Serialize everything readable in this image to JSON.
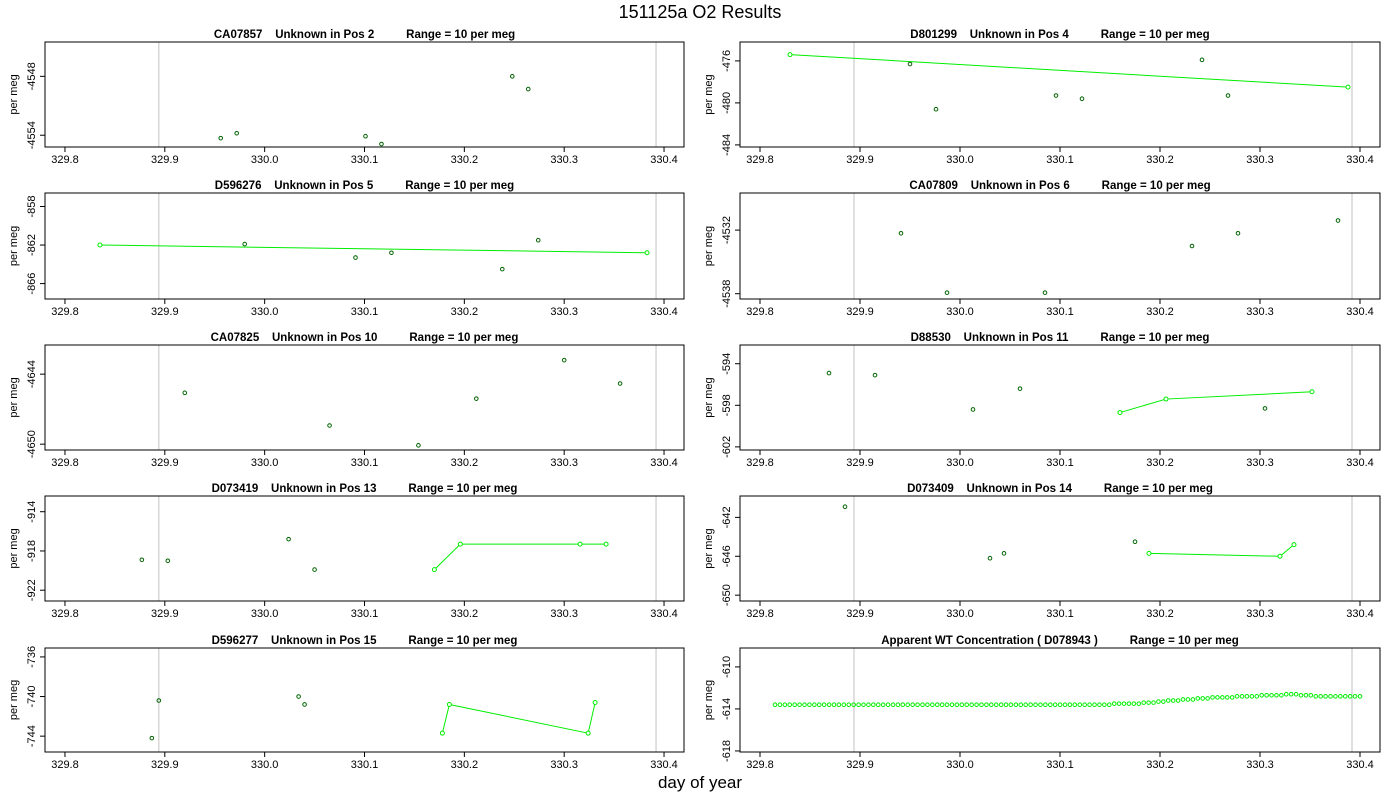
{
  "title": "151125a  O2 Results",
  "xlabel": "day of year",
  "colors": {
    "fit": "#00ee00",
    "point_dark": "#006400",
    "point_light": "#00ee00",
    "vline": "#cccccc"
  },
  "chart_data": [
    {
      "type": "scatter",
      "title": "CA07857    Unknown in Pos 2          Range = 10 per meg",
      "ylabel": "per meg",
      "xticks": [
        329.8,
        329.9,
        330.0,
        330.1,
        330.2,
        330.3,
        330.4
      ],
      "yticks": [
        -4548,
        -4554
      ],
      "xlim": [
        329.78,
        330.42
      ],
      "ylim": [
        -4555.2,
        -4544.5
      ],
      "vlines": [
        329.894,
        330.392
      ],
      "points": [
        [
          329.956,
          -4554.3
        ],
        [
          329.972,
          -4553.8
        ],
        [
          330.101,
          -4554.1
        ],
        [
          330.117,
          -4554.9
        ],
        [
          330.248,
          -4548.0
        ],
        [
          330.264,
          -4549.3
        ]
      ],
      "fit": [],
      "point_color": "dark"
    },
    {
      "type": "scatter",
      "title": "D801299    Unknown in Pos 4          Range = 10 per meg",
      "ylabel": "per meg",
      "xticks": [
        329.8,
        329.9,
        330.0,
        330.1,
        330.2,
        330.3,
        330.4
      ],
      "yticks": [
        -476,
        -480,
        -484
      ],
      "xlim": [
        329.78,
        330.42
      ],
      "ylim": [
        -484.2,
        -474.2
      ],
      "vlines": [
        329.894,
        330.392
      ],
      "points": [
        [
          329.95,
          -476.3
        ],
        [
          329.976,
          -480.6
        ],
        [
          330.096,
          -479.3
        ],
        [
          330.122,
          -479.6
        ],
        [
          330.242,
          -475.9
        ],
        [
          330.268,
          -479.3
        ]
      ],
      "fit": [
        [
          329.83,
          -475.4
        ],
        [
          330.388,
          -478.5
        ]
      ],
      "point_color": "dark"
    },
    {
      "type": "scatter",
      "title": "D596276    Unknown in Pos 5          Range = 10 per meg",
      "ylabel": "per meg",
      "xticks": [
        329.8,
        329.9,
        330.0,
        330.1,
        330.2,
        330.3,
        330.4
      ],
      "yticks": [
        -858,
        -862,
        -866
      ],
      "xlim": [
        329.78,
        330.42
      ],
      "ylim": [
        -867.6,
        -856.6
      ],
      "vlines": [
        329.894,
        330.392
      ],
      "points": [
        [
          329.98,
          -861.9
        ],
        [
          330.091,
          -863.3
        ],
        [
          330.127,
          -862.8
        ],
        [
          330.238,
          -864.5
        ],
        [
          330.274,
          -861.5
        ]
      ],
      "fit": [
        [
          329.835,
          -862.0
        ],
        [
          330.383,
          -862.8
        ]
      ],
      "point_color": "dark"
    },
    {
      "type": "scatter",
      "title": "CA07809    Unknown in Pos 6          Range = 10 per meg",
      "ylabel": "per meg",
      "xticks": [
        329.8,
        329.9,
        330.0,
        330.1,
        330.2,
        330.3,
        330.4
      ],
      "yticks": [
        -4532,
        -4538
      ],
      "xlim": [
        329.78,
        330.42
      ],
      "ylim": [
        -4538.5,
        -4528.5
      ],
      "vlines": [
        329.894,
        330.392
      ],
      "points": [
        [
          329.941,
          -4532.3
        ],
        [
          329.987,
          -4537.9
        ],
        [
          330.085,
          -4537.9
        ],
        [
          330.232,
          -4533.5
        ],
        [
          330.278,
          -4532.3
        ],
        [
          330.378,
          -4531.1
        ]
      ],
      "fit": [],
      "point_color": "dark"
    },
    {
      "type": "scatter",
      "title": "CA07825    Unknown in Pos 10          Range = 10 per meg",
      "ylabel": "per meg",
      "xticks": [
        329.8,
        329.9,
        330.0,
        330.1,
        330.2,
        330.3,
        330.4
      ],
      "yticks": [
        -4644,
        -4650
      ],
      "xlim": [
        329.78,
        330.42
      ],
      "ylim": [
        -4650.5,
        -4641.5
      ],
      "vlines": [
        329.894,
        330.392
      ],
      "points": [
        [
          329.92,
          -4645.6
        ],
        [
          330.065,
          -4648.4
        ],
        [
          330.154,
          -4650.1
        ],
        [
          330.212,
          -4646.1
        ],
        [
          330.3,
          -4642.8
        ],
        [
          330.356,
          -4644.8
        ]
      ],
      "fit": [],
      "point_color": "dark"
    },
    {
      "type": "scatter",
      "title": "D88530    Unknown in Pos 11          Range = 10 per meg",
      "ylabel": "per meg",
      "xticks": [
        329.8,
        329.9,
        330.0,
        330.1,
        330.2,
        330.3,
        330.4
      ],
      "yticks": [
        -594,
        -598,
        -602
      ],
      "xlim": [
        329.78,
        330.42
      ],
      "ylim": [
        -602.3,
        -592.2
      ],
      "vlines": [
        329.894,
        330.392
      ],
      "points": [
        [
          329.869,
          -594.9
        ],
        [
          329.915,
          -595.1
        ],
        [
          330.013,
          -598.4
        ],
        [
          330.06,
          -596.4
        ],
        [
          330.305,
          -598.3
        ]
      ],
      "fit": [
        [
          330.16,
          -598.7
        ],
        [
          330.206,
          -597.4
        ],
        [
          330.352,
          -596.7
        ]
      ],
      "point_color": "dark"
    },
    {
      "type": "scatter",
      "title": "D073419    Unknown in Pos 13          Range = 10 per meg",
      "ylabel": "per meg",
      "xticks": [
        329.8,
        329.9,
        330.0,
        330.1,
        330.2,
        330.3,
        330.4
      ],
      "yticks": [
        -914,
        -918,
        -922
      ],
      "xlim": [
        329.78,
        330.42
      ],
      "ylim": [
        -923.1,
        -912.4
      ],
      "vlines": [
        329.894,
        330.392
      ],
      "points": [
        [
          329.877,
          -918.9
        ],
        [
          329.903,
          -919.0
        ],
        [
          330.024,
          -916.8
        ],
        [
          330.05,
          -919.9
        ]
      ],
      "fit": [
        [
          330.17,
          -919.9
        ],
        [
          330.196,
          -917.3
        ],
        [
          330.316,
          -917.3
        ],
        [
          330.342,
          -917.3
        ]
      ],
      "point_color": "dark"
    },
    {
      "type": "scatter",
      "title": "D073409    Unknown in Pos 14          Range = 10 per meg",
      "ylabel": "per meg",
      "xticks": [
        329.8,
        329.9,
        330.0,
        330.1,
        330.2,
        330.3,
        330.4
      ],
      "yticks": [
        -642,
        -646,
        -650
      ],
      "xlim": [
        329.78,
        330.42
      ],
      "ylim": [
        -650.6,
        -639.8
      ],
      "vlines": [
        329.894,
        330.392
      ],
      "points": [
        [
          329.885,
          -640.9
        ],
        [
          330.03,
          -646.2
        ],
        [
          330.044,
          -645.7
        ],
        [
          330.175,
          -644.5
        ]
      ],
      "fit": [
        [
          330.189,
          -645.7
        ],
        [
          330.32,
          -646.0
        ],
        [
          330.334,
          -644.8
        ]
      ],
      "point_color": "dark"
    },
    {
      "type": "scatter",
      "title": "D596277    Unknown in Pos 15          Range = 10 per meg",
      "ylabel": "per meg",
      "xticks": [
        329.8,
        329.9,
        330.0,
        330.1,
        330.2,
        330.3,
        330.4
      ],
      "yticks": [
        -736,
        -740,
        -744
      ],
      "xlim": [
        329.78,
        330.42
      ],
      "ylim": [
        -745.6,
        -735.1
      ],
      "vlines": [
        329.894,
        330.392
      ],
      "points": [
        [
          329.887,
          -744.2
        ],
        [
          329.894,
          -740.4
        ],
        [
          330.034,
          -740.0
        ],
        [
          330.04,
          -740.8
        ]
      ],
      "fit": [
        [
          330.178,
          -743.7
        ],
        [
          330.185,
          -740.8
        ],
        [
          330.324,
          -743.7
        ],
        [
          330.331,
          -740.6
        ]
      ],
      "point_color": "dark"
    },
    {
      "type": "line",
      "title": "Apparent WT Concentration ( D078943 )          Range = 10 per meg",
      "ylabel": "per meg",
      "xticks": [
        329.8,
        329.9,
        330.0,
        330.1,
        330.2,
        330.3,
        330.4
      ],
      "yticks": [
        -610,
        -614,
        -618
      ],
      "xlim": [
        329.78,
        330.42
      ],
      "ylim": [
        -618.1,
        -608.2
      ],
      "vlines": [
        329.894,
        330.392
      ],
      "line_range": [
        329.815,
        330.4
      ],
      "line_values": [
        -613.6,
        -613.6,
        -613.6,
        -613.6,
        -613.6,
        -613.6,
        -613.6,
        -613.6,
        -613.6,
        -613.6,
        -613.6,
        -613.6,
        -613.6,
        -613.6,
        -613.6,
        -613.6,
        -613.6,
        -613.6,
        -613.6,
        -613.6,
        -613.6,
        -613.6,
        -613.6,
        -613.6,
        -613.6,
        -613.6,
        -613.6,
        -613.6,
        -613.6,
        -613.6,
        -613.6,
        -613.6,
        -613.6,
        -613.6,
        -613.6,
        -613.6,
        -613.6,
        -613.6,
        -613.6,
        -613.6,
        -613.6,
        -613.6,
        -613.6,
        -613.6,
        -613.6,
        -613.6,
        -613.6,
        -613.6,
        -613.6,
        -613.6,
        -613.6,
        -613.6,
        -613.6,
        -613.6,
        -613.6,
        -613.6,
        -613.6,
        -613.6,
        -613.6,
        -613.6,
        -613.6,
        -613.6,
        -613.6,
        -613.6,
        -613.6,
        -613.6,
        -613.6,
        -613.6,
        -613.6,
        -613.5,
        -613.5,
        -613.5,
        -613.5,
        -613.5,
        -613.5,
        -613.4,
        -613.4,
        -613.4,
        -613.3,
        -613.3,
        -613.2,
        -613.2,
        -613.2,
        -613.1,
        -613.1,
        -613.1,
        -613.0,
        -613.0,
        -613.0,
        -612.9,
        -612.9,
        -612.9,
        -612.9,
        -612.9,
        -612.8,
        -612.8,
        -612.8,
        -612.8,
        -612.8,
        -612.7,
        -612.7,
        -612.7,
        -612.7,
        -612.7,
        -612.6,
        -612.6,
        -612.6,
        -612.7,
        -612.7,
        -612.7,
        -612.8,
        -612.8,
        -612.8,
        -612.8,
        -612.8,
        -612.8,
        -612.8,
        -612.8,
        -612.8,
        -612.8
      ],
      "point_color": "light"
    }
  ]
}
